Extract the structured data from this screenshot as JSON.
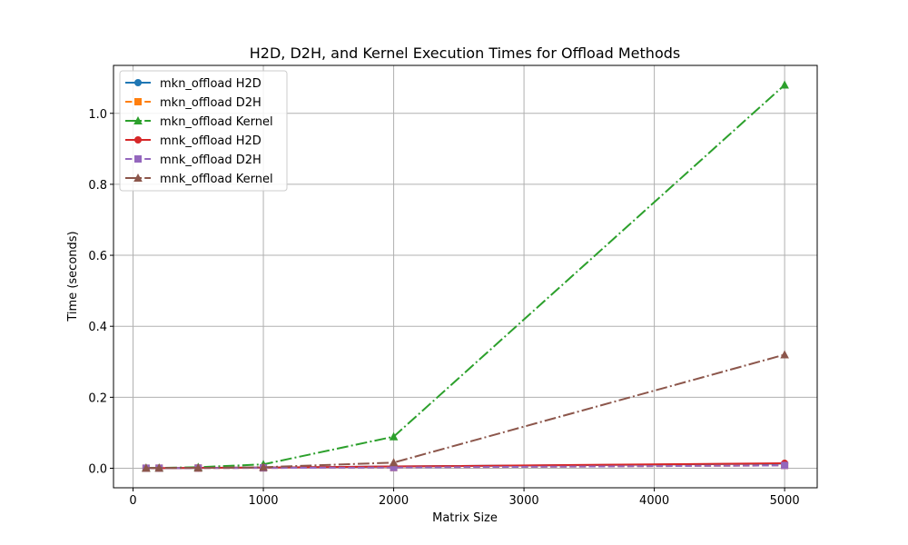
{
  "chart_data": {
    "type": "line",
    "title": "H2D, D2H, and Kernel Execution Times for Offload Methods",
    "xlabel": "Matrix Size",
    "ylabel": "Time (seconds)",
    "x": [
      100,
      200,
      500,
      1000,
      2000,
      5000
    ],
    "xlim": [
      -150,
      5250
    ],
    "ylim": [
      -0.055,
      1.135
    ],
    "xticks": [
      0,
      1000,
      2000,
      3000,
      4000,
      5000
    ],
    "yticks": [
      0.0,
      0.2,
      0.4,
      0.6,
      0.8,
      1.0
    ],
    "ytick_labels": [
      "0.0",
      "0.2",
      "0.4",
      "0.6",
      "0.8",
      "1.0"
    ],
    "grid": true,
    "legend_position": "top-left",
    "series": [
      {
        "name": "mkn_offload H2D",
        "color": "#1f77b4",
        "line_style": "solid",
        "marker": "circle",
        "values": [
          0.0003,
          0.0005,
          0.001,
          0.002,
          0.005,
          0.013
        ]
      },
      {
        "name": "mkn_offload D2H",
        "color": "#ff7f0e",
        "line_style": "dashed",
        "marker": "square",
        "values": [
          0.0002,
          0.0003,
          0.0006,
          0.001,
          0.002,
          0.008
        ]
      },
      {
        "name": "mkn_offload Kernel",
        "color": "#2ca02c",
        "line_style": "dashdot",
        "marker": "triangle",
        "values": [
          0.001,
          0.001,
          0.003,
          0.011,
          0.089,
          1.08
        ]
      },
      {
        "name": "mnk_offload H2D",
        "color": "#d62728",
        "line_style": "solid",
        "marker": "circle",
        "values": [
          0.0003,
          0.0005,
          0.001,
          0.002,
          0.005,
          0.014
        ]
      },
      {
        "name": "mnk_offload D2H",
        "color": "#9467bd",
        "line_style": "dashed",
        "marker": "square",
        "values": [
          0.0002,
          0.0003,
          0.0005,
          0.001,
          0.002,
          0.008
        ]
      },
      {
        "name": "mnk_offload Kernel",
        "color": "#8c564b",
        "line_style": "dashdot",
        "marker": "triangle",
        "values": [
          0.0005,
          0.0006,
          0.001,
          0.003,
          0.016,
          0.32
        ]
      }
    ]
  }
}
